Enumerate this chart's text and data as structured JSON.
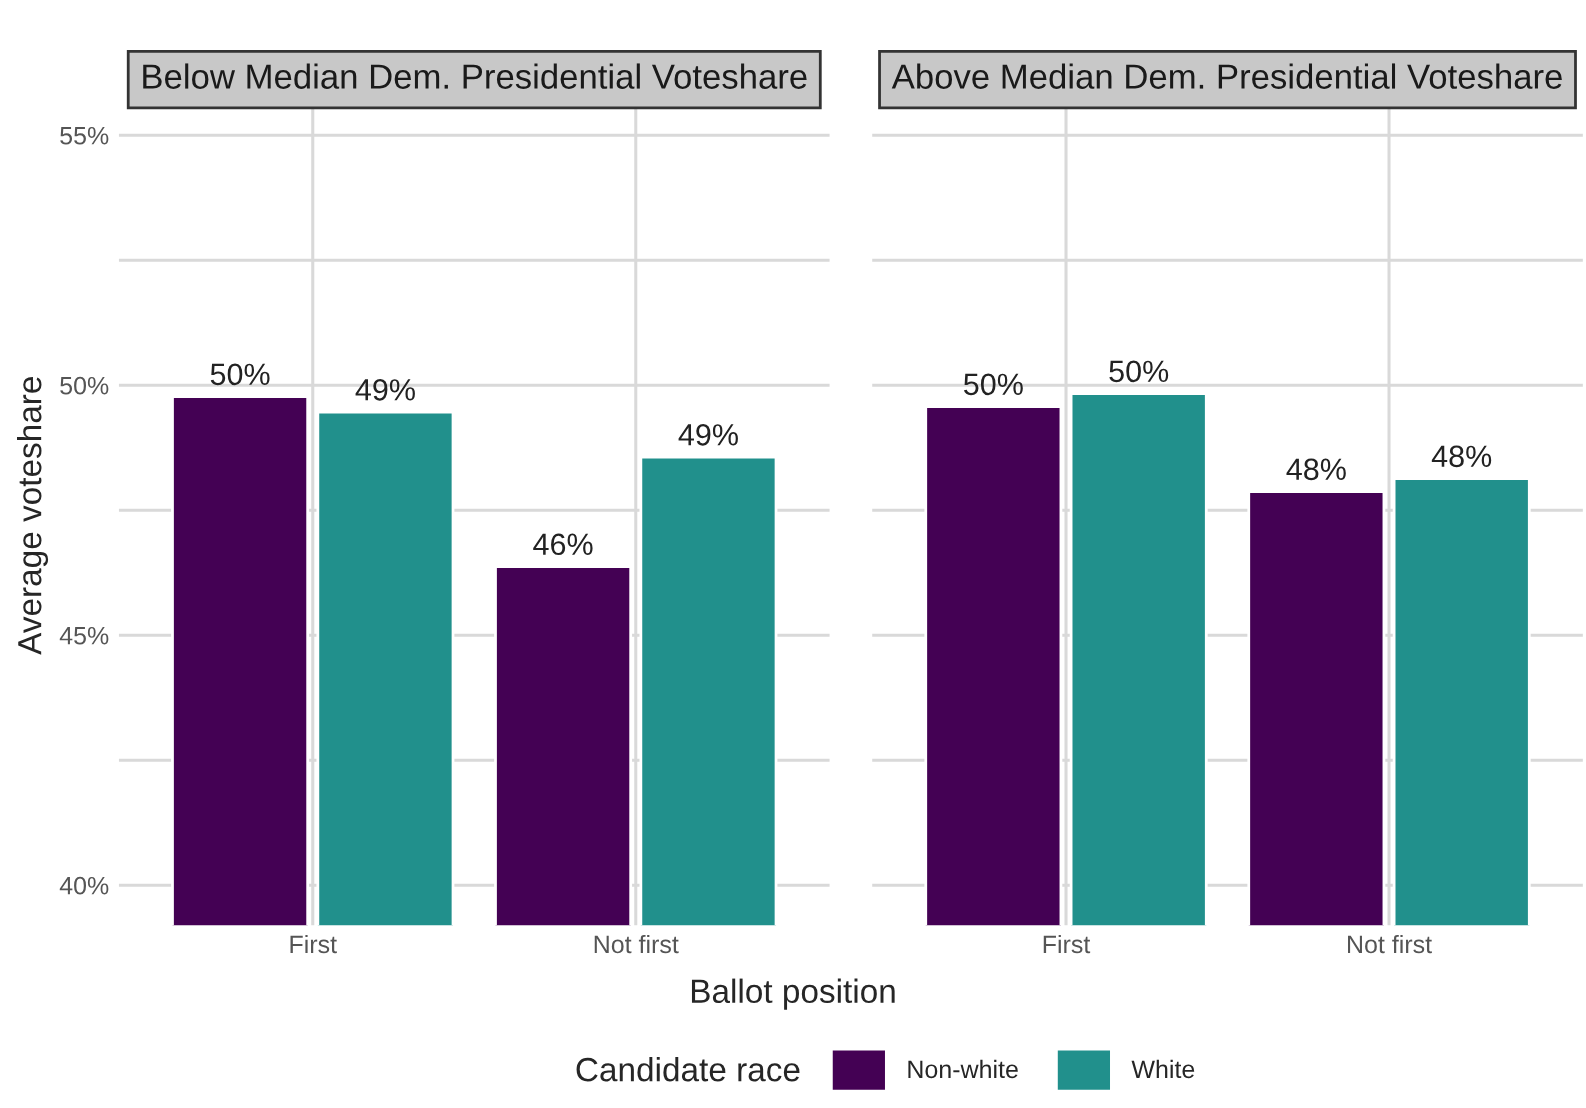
{
  "chart_data": [
    {
      "type": "bar",
      "title": "Below Median Dem. Presidential Voteshare",
      "xlabel": "Ballot position",
      "ylabel": "Average voteshare",
      "legend_title": "Candidate race",
      "legend": "bottom",
      "grid": true,
      "categories": [
        "First",
        "Not first"
      ],
      "series": [
        {
          "name": "Non-white",
          "color": "#440154",
          "values": [
            49.77,
            46.37
          ],
          "value_labels": [
            "50%",
            "46%"
          ]
        },
        {
          "name": "White",
          "color": "#21908c",
          "values": [
            49.46,
            48.56
          ],
          "value_labels": [
            "49%",
            "49%"
          ]
        }
      ],
      "ylim": [
        39.2,
        55.6
      ],
      "yticks": [
        {
          "value": 40,
          "label": "40%"
        },
        {
          "value": 42.5,
          "label": null
        },
        {
          "value": 45,
          "label": "45%"
        },
        {
          "value": 47.5,
          "label": null
        },
        {
          "value": 50,
          "label": "50%"
        },
        {
          "value": 52.5,
          "label": null
        },
        {
          "value": 55,
          "label": "55%"
        }
      ]
    },
    {
      "type": "bar",
      "title": "Above Median Dem. Presidential Voteshare",
      "grid": true,
      "tick_labels": "x",
      "categories": [
        "First",
        "Not first"
      ],
      "series": [
        {
          "color": "#440154",
          "values": [
            49.57,
            47.87
          ],
          "value_labels": [
            "50%",
            "48%"
          ]
        },
        {
          "color": "#21908c",
          "values": [
            49.83,
            48.13
          ],
          "value_labels": [
            "50%",
            "48%"
          ]
        }
      ],
      "ylim": [
        39.2,
        55.6
      ],
      "yticks": [
        {
          "value": 40,
          "label": null
        },
        {
          "value": 42.5,
          "label": null
        },
        {
          "value": 45,
          "label": null
        },
        {
          "value": 47.5,
          "label": null
        },
        {
          "value": 50,
          "label": null
        },
        {
          "value": 52.5,
          "label": null
        },
        {
          "value": 55,
          "label": null
        }
      ]
    }
  ]
}
